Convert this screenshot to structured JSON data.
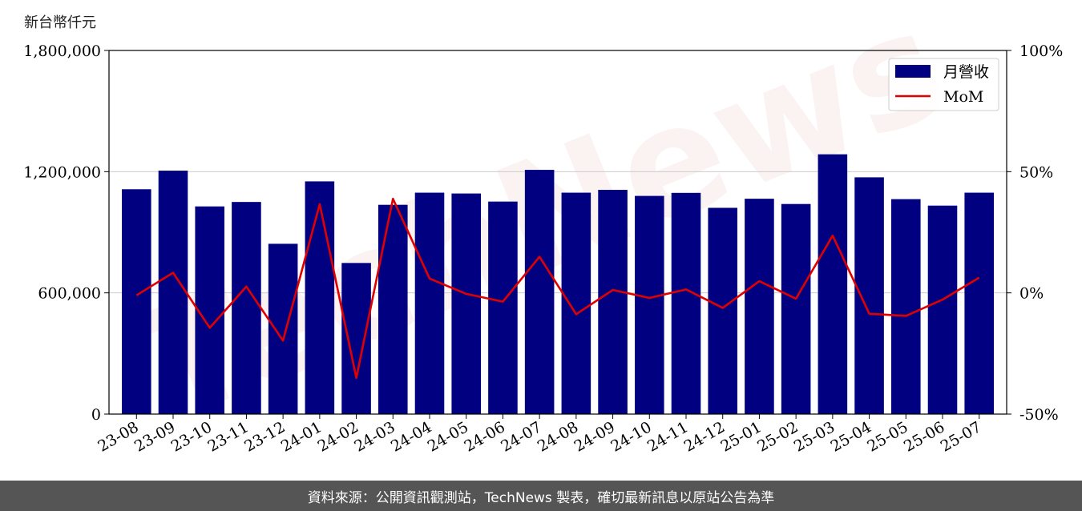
{
  "unit_label": "新台幣仟元",
  "footer_text": "資料來源：公開資訊觀測站，TechNews 製表，確切最新訊息以原站公告為準",
  "watermark_text": "TechNews",
  "colors": {
    "bar": "#000080",
    "line": "#e00000",
    "footer_bg": "#555555"
  },
  "chart_data": {
    "type": "bar",
    "categories": [
      "23-08",
      "23-09",
      "23-10",
      "23-11",
      "23-12",
      "24-01",
      "24-02",
      "24-03",
      "24-04",
      "24-05",
      "24-06",
      "24-07",
      "24-08",
      "24-09",
      "24-10",
      "24-11",
      "24-12",
      "25-01",
      "25-02",
      "25-03",
      "25-04",
      "25-05",
      "25-06",
      "25-07"
    ],
    "series": [
      {
        "name": "月營收",
        "type": "bar",
        "axis": "left",
        "values": [
          1113000,
          1205000,
          1028000,
          1050000,
          843000,
          1152000,
          748000,
          1036000,
          1096000,
          1092000,
          1052000,
          1209000,
          1096000,
          1110000,
          1080000,
          1095000,
          1021000,
          1066000,
          1040000,
          1286000,
          1172000,
          1064000,
          1032000,
          1096000
        ]
      },
      {
        "name": "MoM",
        "type": "line",
        "axis": "right",
        "values": [
          -1.0,
          8.3,
          -14.4,
          2.6,
          -19.7,
          36.6,
          -35.1,
          38.8,
          5.9,
          -0.4,
          -3.6,
          14.9,
          -8.8,
          1.2,
          -2.1,
          1.4,
          -6.2,
          4.8,
          -2.4,
          23.6,
          -8.6,
          -9.5,
          -2.8,
          6.3
        ]
      }
    ],
    "y_left": {
      "min": 0,
      "max": 1800000,
      "ticks": [
        "0",
        "600,000",
        "1,200,000",
        "1,800,000"
      ],
      "tick_values": [
        0,
        600000,
        1200000,
        1800000
      ]
    },
    "y_right": {
      "min": -50,
      "max": 100,
      "ticks": [
        "-50%",
        "0%",
        "50%",
        "100%"
      ],
      "tick_values": [
        -50,
        0,
        50,
        100
      ]
    },
    "grid": "horizontal",
    "legend": {
      "placement": "top-right",
      "items": [
        "月營收",
        "MoM"
      ]
    }
  }
}
